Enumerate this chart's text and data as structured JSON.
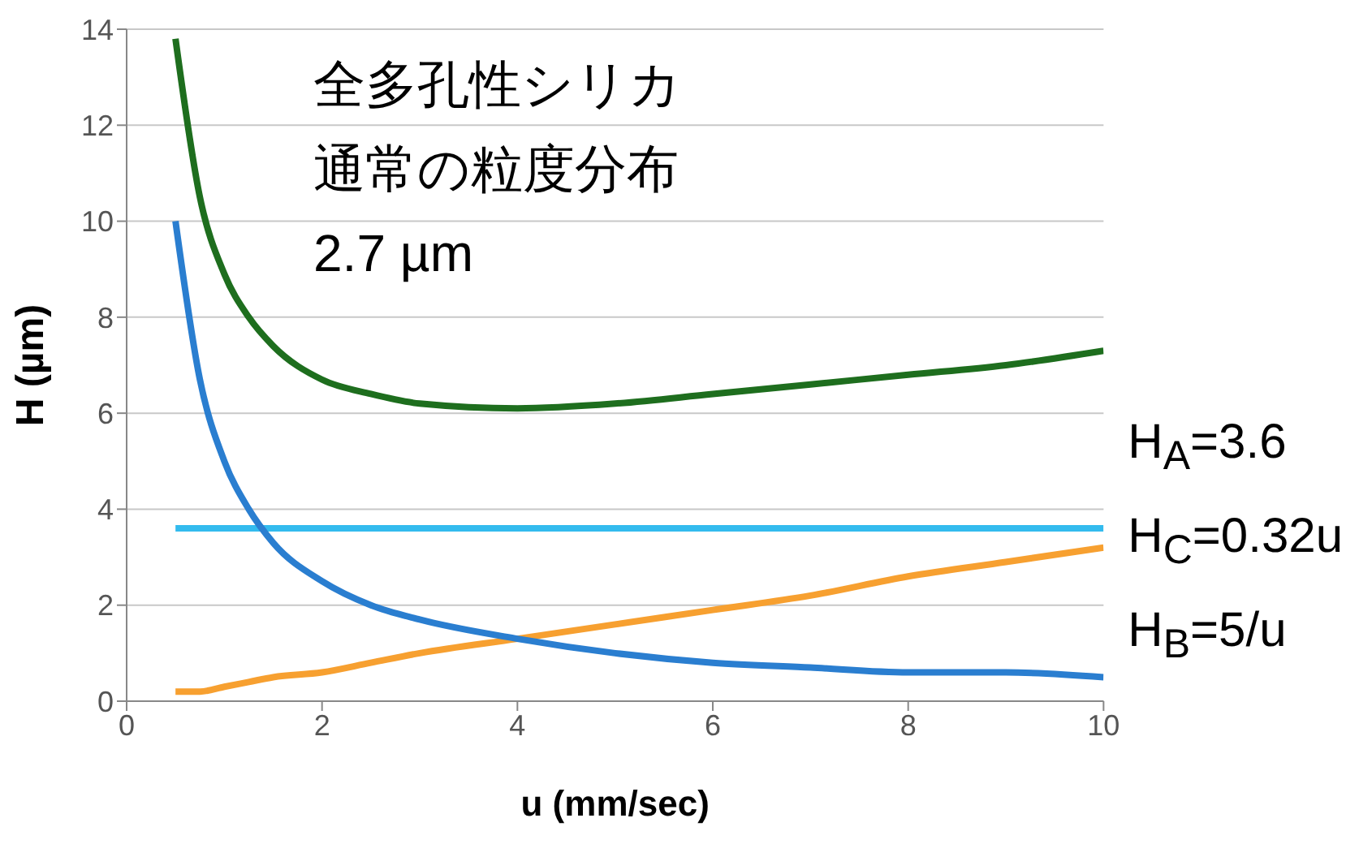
{
  "chart_data": {
    "type": "line",
    "xlabel": "u (mm/sec)",
    "ylabel": "H (µm)",
    "annotations": [
      "全多孔性シリカ",
      "通常の粒度分布",
      "2.7 µm"
    ],
    "x": [
      0.5,
      0.75,
      1,
      1.25,
      1.5,
      2,
      2.5,
      3,
      4,
      5,
      6,
      7,
      8,
      9,
      10
    ],
    "series": [
      {
        "color": "#1e6e1e",
        "values": [
          13.8,
          10.5,
          8.9,
          8,
          7.4,
          6.7,
          6.4,
          6.2,
          6.1,
          6.2,
          6.4,
          6.6,
          6.8,
          7,
          7.3
        ]
      },
      {
        "name": "H$_{A}$=3.6",
        "color": "#33bbee",
        "values": [
          3.6,
          3.6,
          3.6,
          3.6,
          3.6,
          3.6,
          3.6,
          3.6,
          3.6,
          3.6,
          3.6,
          3.6,
          3.6,
          3.6,
          3.6
        ]
      },
      {
        "name": "H$_{C}$=0.32u",
        "color": "#f7a030",
        "values": [
          0.2,
          0.2,
          0.3,
          0.4,
          0.5,
          0.6,
          0.8,
          1,
          1.3,
          1.6,
          1.9,
          2.2,
          2.6,
          2.9,
          3.2
        ]
      },
      {
        "name": "H$_{B}$=5/u",
        "color": "#2a7ed0",
        "values": [
          10,
          6.7,
          5,
          4,
          3.3,
          2.5,
          2,
          1.7,
          1.3,
          1,
          0.8,
          0.7,
          0.6,
          0.6,
          0.5
        ]
      }
    ],
    "xlim": [
      0,
      10
    ],
    "xticks": [
      0,
      2,
      4,
      6,
      8,
      10
    ],
    "ylim": [
      0,
      14
    ],
    "yticks": [
      0,
      2,
      4,
      6,
      8,
      10,
      12,
      14
    ],
    "grid": "y",
    "legend": "right",
    "marker": "none",
    "line_style": "solid"
  }
}
